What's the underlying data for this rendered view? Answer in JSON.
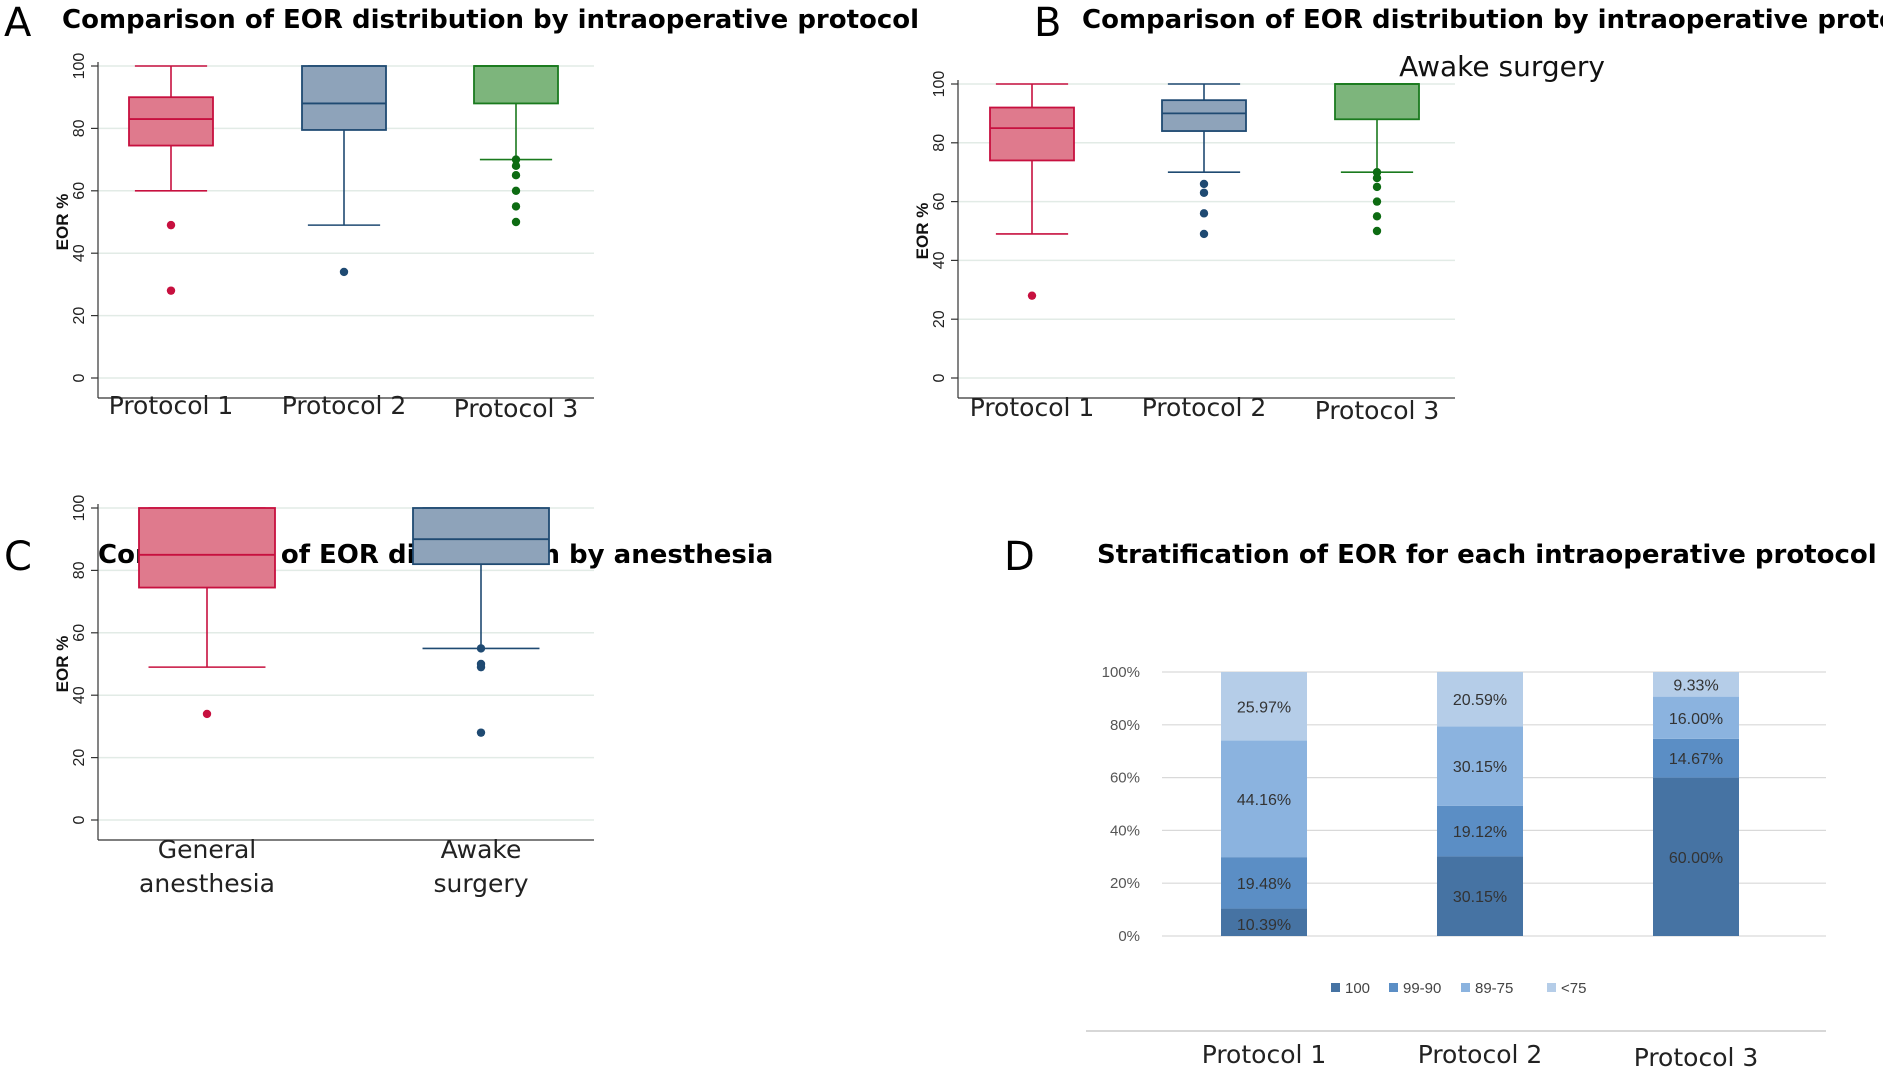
{
  "chart_data": [
    {
      "panel": "A",
      "type": "box",
      "title": "Comparison of EOR distribution by intraoperative protocol",
      "ylabel": "EOR %",
      "ylim": [
        0,
        100
      ],
      "yticks": [
        0,
        20,
        40,
        60,
        80,
        100
      ],
      "categories": [
        "Protocol 1",
        "Protocol 2",
        "Protocol 3"
      ],
      "boxes": [
        {
          "min": 60,
          "q1": 74.5,
          "median": 83,
          "q3": 90,
          "max": 100,
          "outliers": [
            49,
            28
          ]
        },
        {
          "min": 49,
          "q1": 79.5,
          "median": 88,
          "q3": 100,
          "max": 100,
          "outliers": [
            34
          ]
        },
        {
          "min": 70,
          "q1": 88,
          "median": 100,
          "q3": 100,
          "max": 100,
          "outliers": [
            70,
            68,
            65,
            60,
            55,
            50
          ]
        }
      ]
    },
    {
      "panel": "B",
      "type": "box",
      "title": "Comparison of EOR distribution by intraoperative protocol",
      "subtitle": "Awake surgery",
      "ylabel": "EOR %",
      "ylim": [
        0,
        100
      ],
      "yticks": [
        0,
        20,
        40,
        60,
        80,
        100
      ],
      "categories": [
        "Protocol 1",
        "Protocol 2",
        "Protocol 3"
      ],
      "boxes": [
        {
          "min": 49,
          "q1": 74,
          "median": 85,
          "q3": 92,
          "max": 100,
          "outliers": [
            28
          ]
        },
        {
          "min": 70,
          "q1": 84,
          "median": 90,
          "q3": 94.5,
          "max": 100,
          "outliers": [
            66,
            63,
            56,
            49
          ]
        },
        {
          "min": 70,
          "q1": 88,
          "median": 100,
          "q3": 100,
          "max": 100,
          "outliers": [
            70,
            68,
            65,
            60,
            55,
            50
          ]
        }
      ]
    },
    {
      "panel": "C",
      "type": "box",
      "title": "Comparison of EOR distribution by anesthesia",
      "ylabel": "EOR %",
      "ylim": [
        0,
        100
      ],
      "yticks": [
        0,
        20,
        40,
        60,
        80,
        100
      ],
      "categories": [
        [
          "General",
          "anesthesia"
        ],
        [
          "Awake",
          "surgery"
        ]
      ],
      "boxes": [
        {
          "min": 49,
          "q1": 74.5,
          "median": 85,
          "q3": 100,
          "max": 100,
          "outliers": [
            34
          ]
        },
        {
          "min": 55,
          "q1": 82,
          "median": 90,
          "q3": 100,
          "max": 100,
          "outliers": [
            55,
            50,
            49,
            28
          ]
        }
      ]
    },
    {
      "panel": "D",
      "type": "bar",
      "stacked": true,
      "title": "Stratification of EOR for each intraoperative protocol",
      "yticks": [
        "0%",
        "20%",
        "40%",
        "60%",
        "80%",
        "100%"
      ],
      "categories": [
        "Protocol 1",
        "Protocol 2",
        "Protocol 3"
      ],
      "series": [
        {
          "name": "100",
          "values": [
            10.39,
            30.15,
            60.0
          ],
          "labels": [
            "10.39%",
            "30.15%",
            "60.00%"
          ]
        },
        {
          "name": "99-90",
          "values": [
            19.48,
            19.12,
            14.67
          ],
          "labels": [
            "19.48%",
            "19.12%",
            "14.67%"
          ]
        },
        {
          "name": "89-75",
          "values": [
            44.16,
            30.15,
            16.0
          ],
          "labels": [
            "44.16%",
            "30.15%",
            "16.00%"
          ]
        },
        {
          "name": "<75",
          "values": [
            25.97,
            20.59,
            9.33
          ],
          "labels": [
            "25.97%",
            "20.59%",
            "9.33%"
          ]
        }
      ]
    }
  ],
  "colors": {
    "pink": "#c7103f",
    "pink_fill": "#df7a8d",
    "blue": "#1f4a72",
    "blue_fill": "#8ea3ba",
    "green": "#1a7a1e",
    "green_fill": "#7db57c",
    "green_dot": "#0d6b12",
    "grid": "#e2ebe6",
    "seg_100": "#4673a3",
    "seg_99": "#5b8ec5",
    "seg_89": "#8bb3df",
    "seg_75": "#b5cde8"
  }
}
